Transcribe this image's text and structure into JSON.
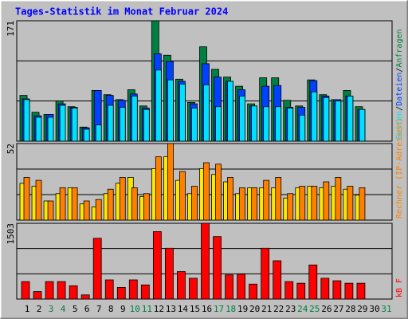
{
  "chart_data": [
    {
      "type": "bar",
      "title": "Tages-Statistik im Monat Februar 2024",
      "separator": "/",
      "ylim": [
        0,
        171
      ],
      "yticks": [
        171
      ],
      "grid": true,
      "series": [
        {
          "name": "Anfragen",
          "color": "#008040",
          "values": [
            65,
            41,
            38,
            57,
            49,
            20,
            72,
            66,
            59,
            73,
            50,
            171,
            122,
            88,
            55,
            134,
            102,
            91,
            78,
            53,
            90,
            90,
            58,
            50,
            87,
            66,
            59,
            72,
            49,
            0,
            0
          ]
        },
        {
          "name": "Dateien",
          "color": "#0040FF",
          "values": [
            60,
            36,
            38,
            53,
            48,
            19,
            72,
            65,
            58,
            67,
            47,
            124,
            113,
            85,
            53,
            110,
            91,
            85,
            73,
            50,
            78,
            79,
            48,
            48,
            86,
            64,
            59,
            64,
            45,
            0,
            0
          ]
        },
        {
          "name": "Seiten",
          "color": "#00E0FF",
          "values": [
            59,
            34,
            34,
            51,
            47,
            17,
            23,
            51,
            48,
            64,
            45,
            101,
            87,
            81,
            47,
            80,
            49,
            85,
            64,
            50,
            49,
            49,
            47,
            37,
            70,
            62,
            57,
            64,
            45,
            0,
            0
          ]
        }
      ]
    },
    {
      "type": "bar",
      "ylim": [
        0,
        52
      ],
      "yticks": [
        52
      ],
      "grid": true,
      "series": [
        {
          "color": "#FFE800",
          "values": [
            25,
            23,
            13,
            18,
            22,
            11,
            9,
            18,
            25,
            29,
            16,
            35,
            43,
            27,
            18,
            35,
            31,
            26,
            18,
            22,
            22,
            22,
            15,
            22,
            23,
            22,
            23,
            21,
            17,
            0,
            0
          ]
        },
        {
          "name": "Rechner (IP-Adressen)",
          "color": "#FF8000",
          "values": [
            29,
            27,
            13,
            22,
            22,
            13,
            14,
            21,
            29,
            22,
            18,
            43,
            52,
            33,
            23,
            39,
            38,
            29,
            22,
            22,
            27,
            29,
            18,
            23,
            23,
            26,
            29,
            23,
            22,
            0,
            0
          ]
        }
      ]
    },
    {
      "type": "bar",
      "ylim": [
        0,
        1503
      ],
      "yticks": [
        1503
      ],
      "grid": true,
      "categories": [
        "1",
        "2",
        "3",
        "4",
        "5",
        "6",
        "7",
        "8",
        "9",
        "10",
        "11",
        "12",
        "13",
        "14",
        "15",
        "16",
        "17",
        "18",
        "19",
        "20",
        "21",
        "22",
        "23",
        "24",
        "25",
        "26",
        "27",
        "28",
        "29",
        "30",
        "31"
      ],
      "category_colors": [
        "#000000",
        "#000000",
        "#008040",
        "#008040",
        "#000000",
        "#000000",
        "#000000",
        "#000000",
        "#000000",
        "#008040",
        "#008040",
        "#000000",
        "#000000",
        "#000000",
        "#000000",
        "#000000",
        "#008040",
        "#008040",
        "#000000",
        "#000000",
        "#000000",
        "#000000",
        "#000000",
        "#008040",
        "#008040",
        "#000000",
        "#000000",
        "#000000",
        "#000000",
        "#000000",
        "#008040"
      ],
      "series": [
        {
          "name": "kB F",
          "color": "#FF0000",
          "values": [
            347,
            149,
            347,
            347,
            264,
            83,
            1206,
            380,
            231,
            380,
            281,
            1338,
            1008,
            545,
            413,
            1503,
            1239,
            479,
            495,
            297,
            1008,
            760,
            347,
            314,
            677,
            413,
            363,
            314,
            314,
            0,
            0
          ]
        }
      ]
    }
  ]
}
